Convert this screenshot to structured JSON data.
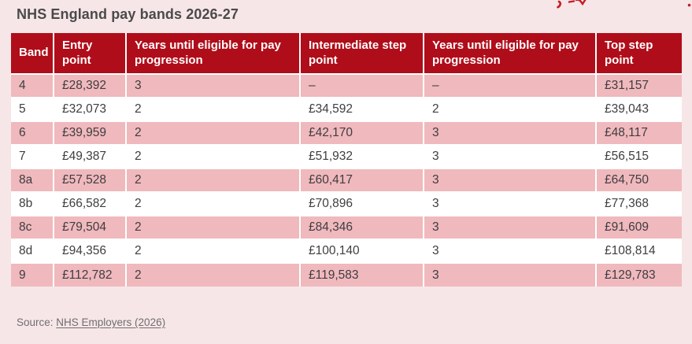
{
  "title": "NHS England pay bands 2026-27",
  "chart_data": {
    "type": "table",
    "title": "NHS England pay bands 2026-27",
    "columns": [
      "Band",
      "Entry point",
      "Years until eligible for pay progression",
      "Intermediate step point",
      "Years until eligible for pay progression",
      "Top step point"
    ],
    "rows": [
      [
        "4",
        "£28,392",
        "3",
        "–",
        "–",
        "£31,157"
      ],
      [
        "5",
        "£32,073",
        "2",
        "£34,592",
        "2",
        "£39,043"
      ],
      [
        "6",
        "£39,959",
        "2",
        "£42,170",
        "3",
        "£48,117"
      ],
      [
        "7",
        "£49,387",
        "2",
        "£51,932",
        "3",
        "£56,515"
      ],
      [
        "8a",
        "£57,528",
        "2",
        "£60,417",
        "3",
        "£64,750"
      ],
      [
        "8b",
        "£66,582",
        "2",
        "£70,896",
        "3",
        "£77,368"
      ],
      [
        "8c",
        "£79,504",
        "2",
        "£84,346",
        "3",
        "£91,609"
      ],
      [
        "8d",
        "£94,356",
        "2",
        "£100,140",
        "3",
        "£108,814"
      ],
      [
        "9",
        "£112,782",
        "2",
        "£119,583",
        "3",
        "£129,783"
      ]
    ],
    "source_prefix": "Source: ",
    "source_link": "NHS Employers (2026)"
  },
  "colors": {
    "page_bg": "#f7e6e8",
    "header_red": "#b00d1a",
    "row_pink": "#f0b9bd",
    "row_white": "#ffffff",
    "artifact_red": "#c51c28",
    "title_gray": "#4a4a4a",
    "source_gray": "#6f6f6f"
  }
}
